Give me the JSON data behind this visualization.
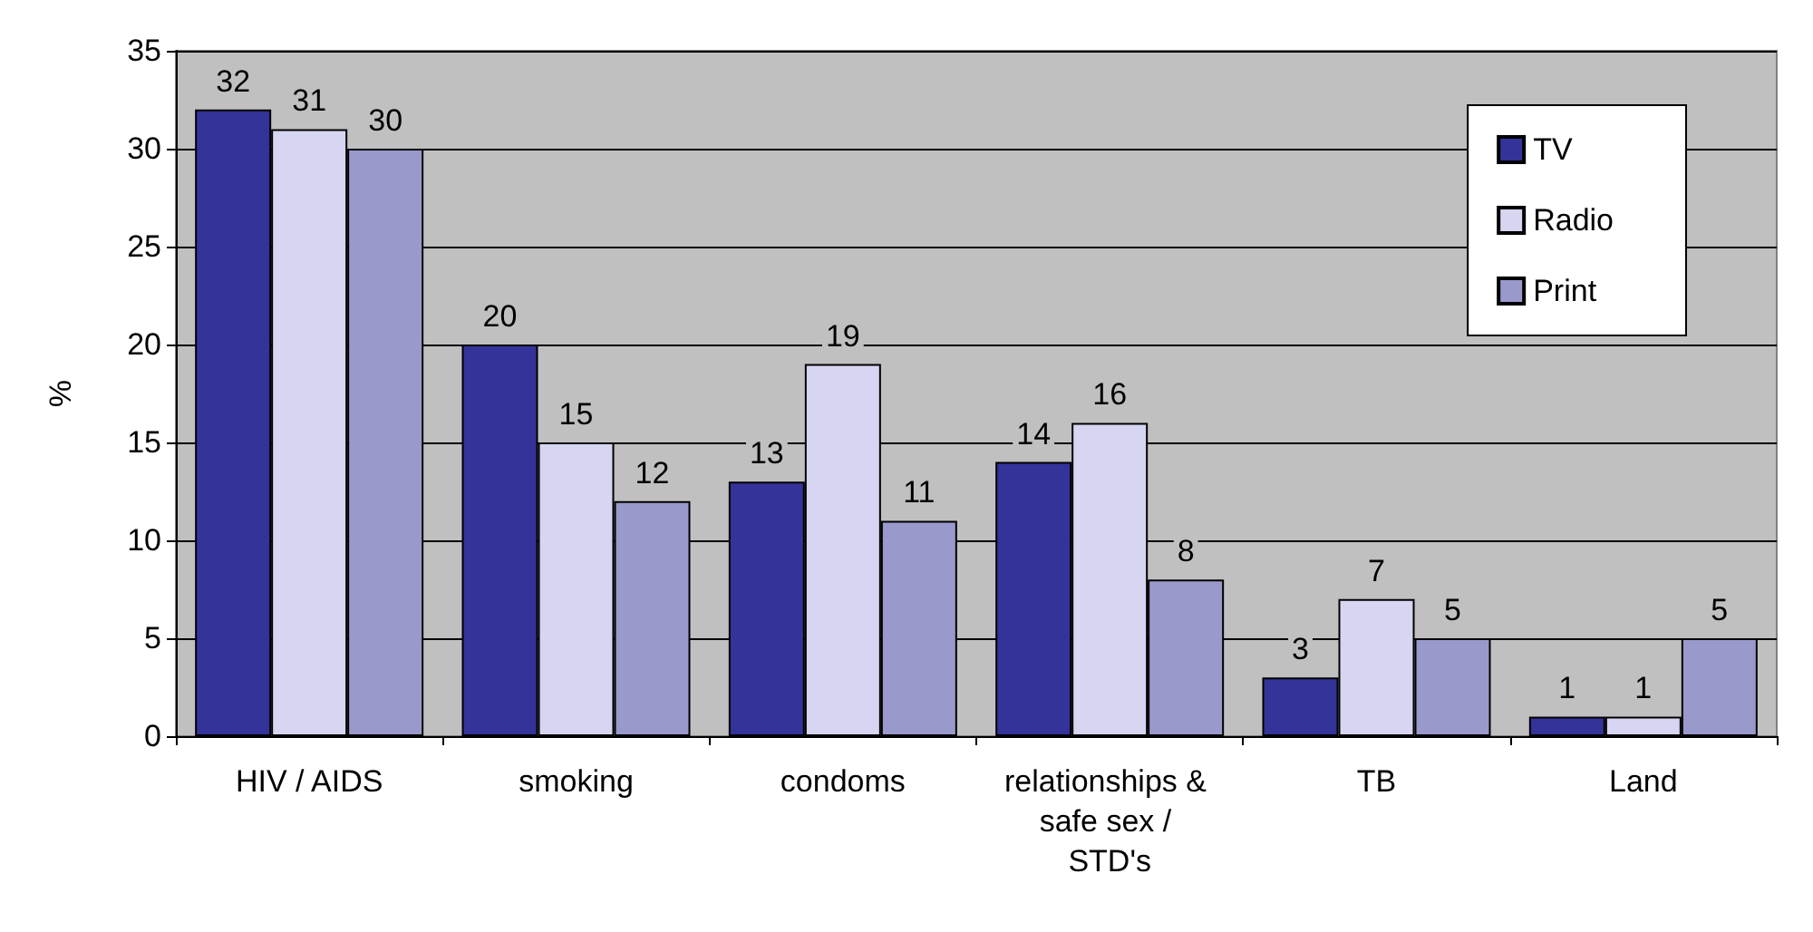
{
  "chart_data": {
    "type": "bar",
    "ylabel": "%",
    "categories": [
      "HIV / AIDS",
      "smoking",
      "condoms",
      "relationships & safe sex / STD's",
      "TB",
      "Land"
    ],
    "series": [
      {
        "name": "TV",
        "color": "#333399",
        "values": [
          32,
          20,
          13,
          14,
          3,
          1
        ]
      },
      {
        "name": "Radio",
        "color": "#d6d6f2",
        "values": [
          31,
          15,
          19,
          16,
          7,
          1
        ]
      },
      {
        "name": "Print",
        "color": "#9999cc",
        "values": [
          30,
          12,
          11,
          8,
          5,
          5
        ]
      }
    ],
    "ylim": [
      0,
      35
    ],
    "yticks": [
      0,
      5,
      10,
      15,
      20,
      25,
      30,
      35
    ],
    "grid": "y",
    "legend": "top right",
    "data_labels": true
  }
}
